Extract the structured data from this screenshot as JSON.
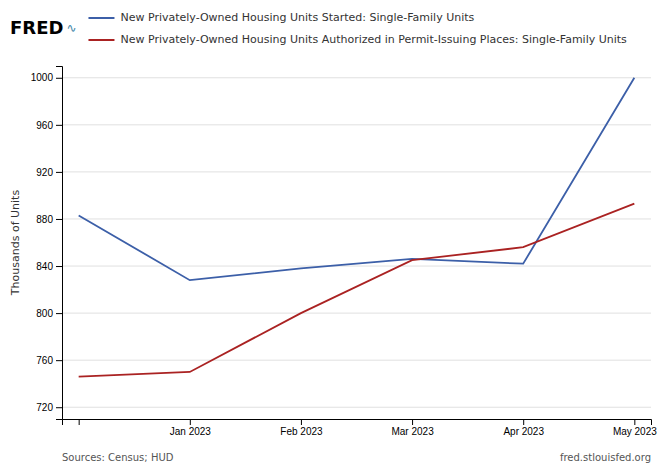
{
  "chart_data": {
    "type": "line",
    "categories": [
      null,
      "Jan 2023",
      "Feb 2023",
      "Mar 2023",
      "Apr 2023",
      "May 2023"
    ],
    "series": [
      {
        "name": "New Privately-Owned Housing Units Started: Single-Family Units",
        "color": "#3C5FA8",
        "values": [
          883,
          828,
          838,
          846,
          842,
          1000
        ]
      },
      {
        "name": "New Privately-Owned Housing Units Authorized in Permit-Issuing Places: Single-Family Units",
        "color": "#AA2222",
        "values": [
          746,
          750,
          800,
          845,
          856,
          893
        ]
      }
    ],
    "y_label": "Thousands of Units",
    "ylim": [
      710,
      1010
    ],
    "yticks": [
      720,
      760,
      800,
      840,
      880,
      920,
      960,
      1000
    ],
    "grid": true,
    "legend": "top",
    "annotations": [
      "FRED",
      "∿",
      "Sources: Census; HUD",
      "fred.stlouisfed.org"
    ]
  }
}
